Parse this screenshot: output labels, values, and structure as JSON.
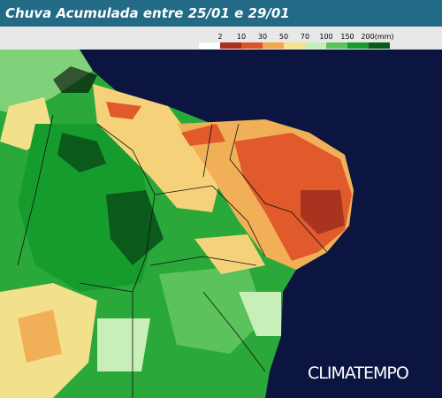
{
  "header": {
    "title": "Chuva Acumulada entre 25/01 e 29/01"
  },
  "legend": {
    "labels": [
      "2",
      "10",
      "30",
      "50",
      "70",
      "100",
      "150",
      "200(mm)"
    ],
    "colors": [
      "#ffffff",
      "#a8321c",
      "#e0532a",
      "#f5a54a",
      "#f8e38e",
      "#c9efb8",
      "#5cc25c",
      "#169c2c",
      "#0b5a1c"
    ]
  },
  "watermark": "CLIMATEMPO"
}
